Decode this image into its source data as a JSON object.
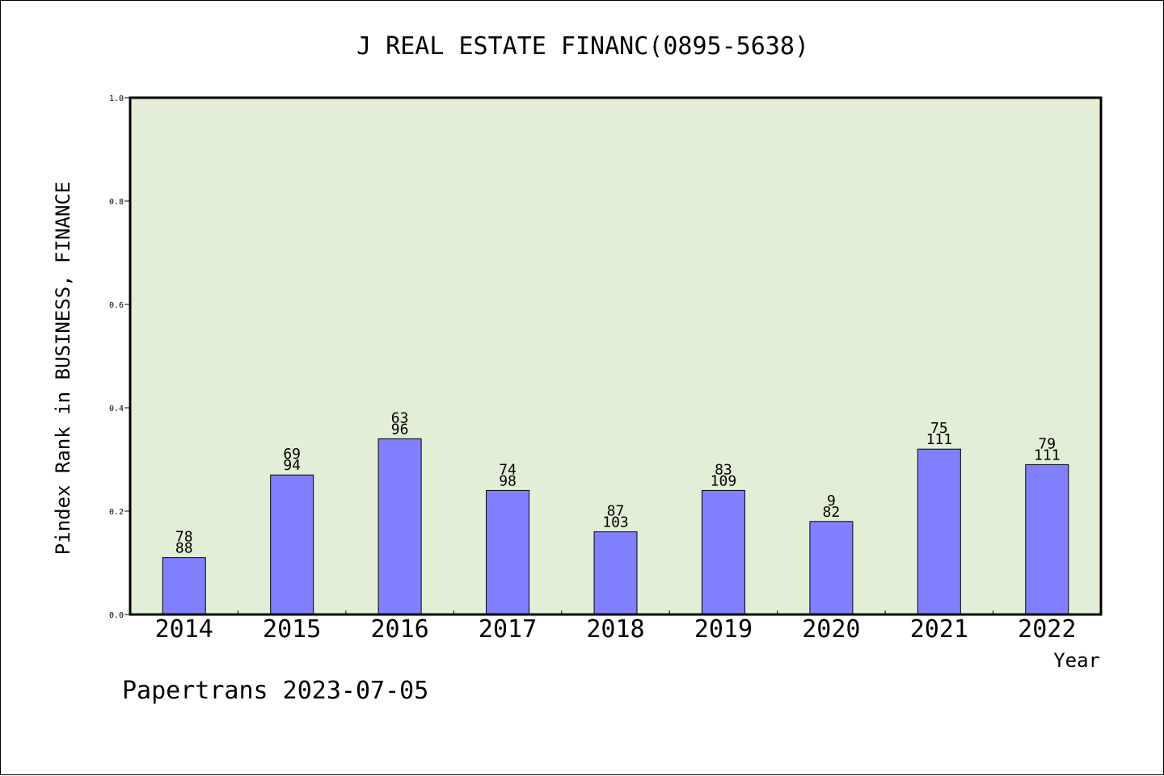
{
  "chart_data": {
    "type": "bar",
    "title": "J REAL ESTATE FINANC(0895-5638)",
    "xlabel": "Year",
    "ylabel": "Pindex Rank in BUSINESS, FINANCE",
    "categories": [
      "2014",
      "2015",
      "2016",
      "2017",
      "2018",
      "2019",
      "2020",
      "2021",
      "2022"
    ],
    "values": [
      0.11,
      0.27,
      0.34,
      0.24,
      0.16,
      0.24,
      0.18,
      0.32,
      0.29
    ],
    "bar_labels_top": [
      "78",
      "69",
      "63",
      "74",
      "87",
      "83",
      "9",
      "75",
      "79"
    ],
    "bar_labels_bottom": [
      "88",
      "94",
      "96",
      "98",
      "103",
      "109",
      "82",
      "111",
      "111"
    ],
    "ylim": [
      0,
      1.0
    ],
    "yticks": [
      "0.0",
      "0.2",
      "0.4",
      "0.6",
      "0.8",
      "1.0"
    ],
    "grid": false,
    "colors": {
      "plot_background": "#e2efd6",
      "bar_fill": "#8080ff",
      "bar_stroke": "#000000"
    }
  },
  "footer": {
    "text": "Papertrans 2023-07-05"
  }
}
